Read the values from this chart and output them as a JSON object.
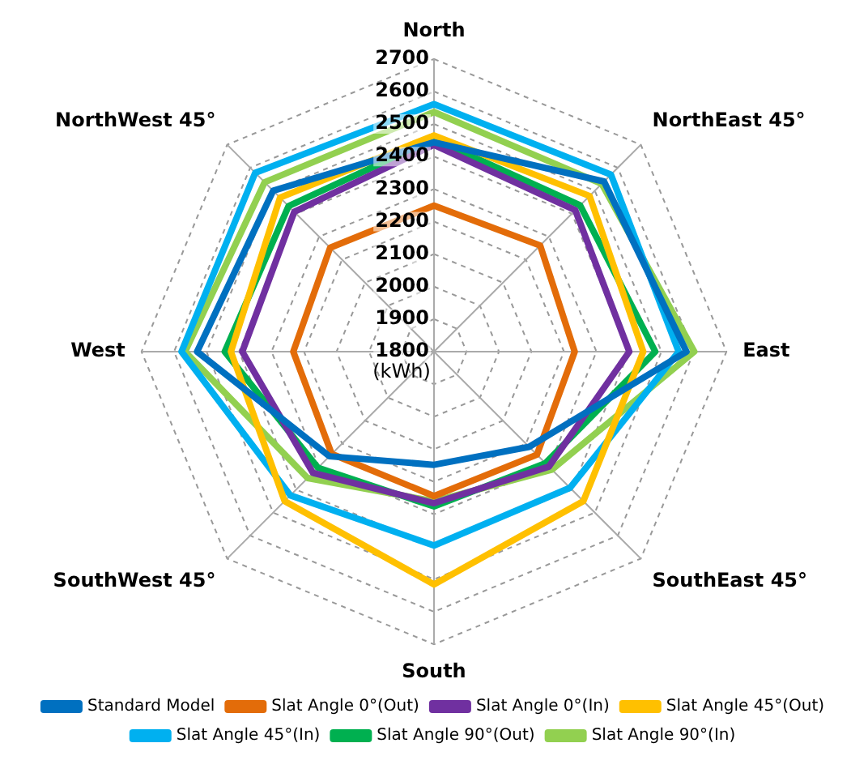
{
  "chart_data": {
    "type": "radar",
    "ylabel": "(kWh)",
    "categories": [
      "North",
      "NorthEast 45°",
      "East",
      "SouthEast 45°",
      "South",
      "SouthWest 45°",
      "West",
      "NorthWest 45°"
    ],
    "series": [
      {
        "name": "Standard Model",
        "color": "#0070c0",
        "values": [
          2444,
          2540,
          2577,
          2214,
          2148,
          2255,
          2529,
          2500
        ]
      },
      {
        "name": "Slat Angle 0°(Out)",
        "color": "#e36c09",
        "values": [
          2249,
          2262,
          2233,
          2248,
          2244,
          2245,
          2233,
          2252
        ]
      },
      {
        "name": "Slat Angle 0°(In)",
        "color": "#7030a0",
        "values": [
          2436,
          2415,
          2401,
          2300,
          2266,
          2327,
          2390,
          2408
        ]
      },
      {
        "name": "Slat Angle 45°(Out)",
        "color": "#ffc000",
        "values": [
          2465,
          2477,
          2444,
          2450,
          2516,
          2450,
          2425,
          2470
        ]
      },
      {
        "name": "Slat Angle 45°(In)",
        "color": "#00b0f0",
        "values": [
          2561,
          2570,
          2553,
          2392,
          2396,
          2425,
          2577,
          2578
        ]
      },
      {
        "name": "Slat Angle 90°(Out)",
        "color": "#00b050",
        "values": [
          2454,
          2436,
          2481,
          2285,
          2276,
          2305,
          2444,
          2433
        ]
      },
      {
        "name": "Slat Angle 90°(In)",
        "color": "#92d050",
        "values": [
          2537,
          2530,
          2601,
          2313,
          2260,
          2350,
          2566,
          2537
        ]
      }
    ],
    "ylim": [
      1800,
      2700
    ],
    "yticks": [
      1800,
      1900,
      2000,
      2100,
      2200,
      2300,
      2400,
      2500,
      2600,
      2700
    ],
    "grid": true,
    "legend": "bottom",
    "marker": "none",
    "line_style": "solid"
  }
}
